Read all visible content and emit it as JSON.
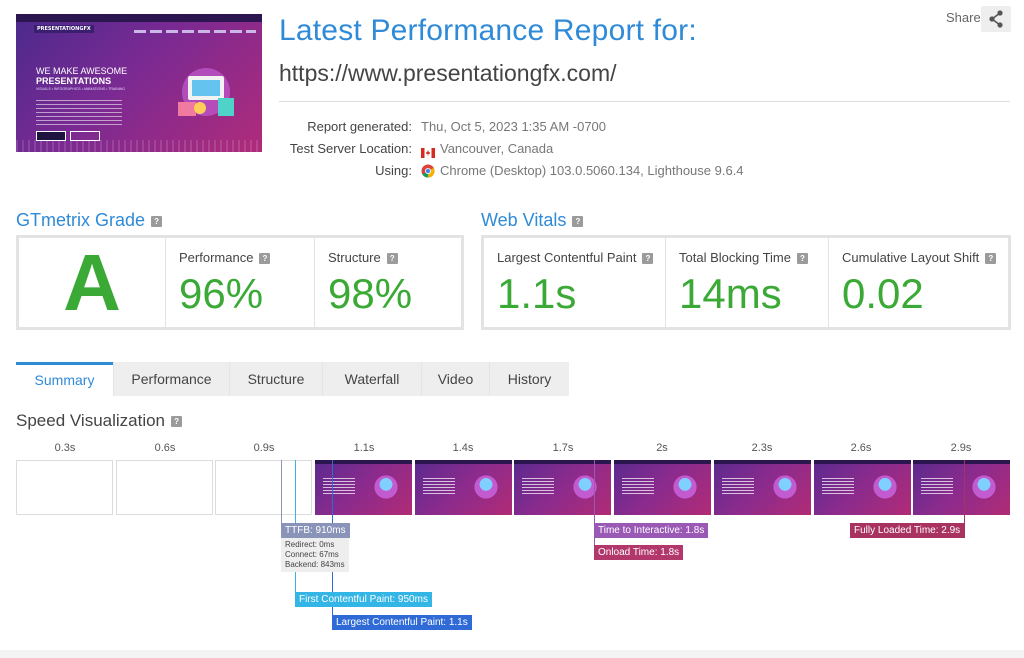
{
  "header": {
    "title": "Latest Performance Report for:",
    "url": "https://www.presentationgfx.com/",
    "share_label": "Share"
  },
  "thumbnail": {
    "logo": "PRESENTATIONGFX",
    "hero_line1": "WE MAKE AWESOME",
    "hero_line2": "PRESENTATIONS",
    "hero_line3": "VISUALS • INFOGRAPHICS • ANIMATIONS • TRAINING"
  },
  "report_info": {
    "generated_label": "Report generated:",
    "generated_value": "Thu, Oct 5, 2023 1:35 AM -0700",
    "server_label": "Test Server Location:",
    "server_value": "Vancouver, Canada",
    "using_label": "Using:",
    "using_value": "Chrome (Desktop) 103.0.5060.134, Lighthouse 9.6.4"
  },
  "grade": {
    "heading": "GTmetrix Grade",
    "letter": "A",
    "performance_label": "Performance",
    "performance_value": "96%",
    "structure_label": "Structure",
    "structure_value": "98%"
  },
  "vitals": {
    "heading": "Web Vitals",
    "lcp_label": "Largest Contentful Paint",
    "lcp_value": "1.1s",
    "tbt_label": "Total Blocking Time",
    "tbt_value": "14ms",
    "cls_label": "Cumulative Layout Shift",
    "cls_value": "0.02"
  },
  "tabs": [
    "Summary",
    "Performance",
    "Structure",
    "Waterfall",
    "Video",
    "History"
  ],
  "active_tab": "Summary",
  "speed": {
    "heading": "Speed Visualization",
    "ticks": [
      "0.3s",
      "0.6s",
      "0.9s",
      "1.1s",
      "1.4s",
      "1.7s",
      "2s",
      "2.3s",
      "2.6s",
      "2.9s"
    ],
    "markers": {
      "ttfb": "TTFB: 910ms",
      "redirect": "Redirect: 0ms",
      "connect": "Connect: 67ms",
      "backend": "Backend: 843ms",
      "fcp": "First Contentful Paint: 950ms",
      "lcp": "Largest Contentful Paint: 1.1s",
      "tti": "Time to Interactive: 1.8s",
      "onload": "Onload Time: 1.8s",
      "fully_loaded": "Fully Loaded Time: 2.9s"
    }
  },
  "colors": {
    "accent": "#2f8ad7",
    "good": "#3aa935",
    "ttfb": "#8a94b8",
    "fcp": "#33b5e5",
    "lcp": "#2f6ad7",
    "tti": "#9b59b6",
    "onload": "#b2376b",
    "fully_loaded": "#a83260"
  }
}
